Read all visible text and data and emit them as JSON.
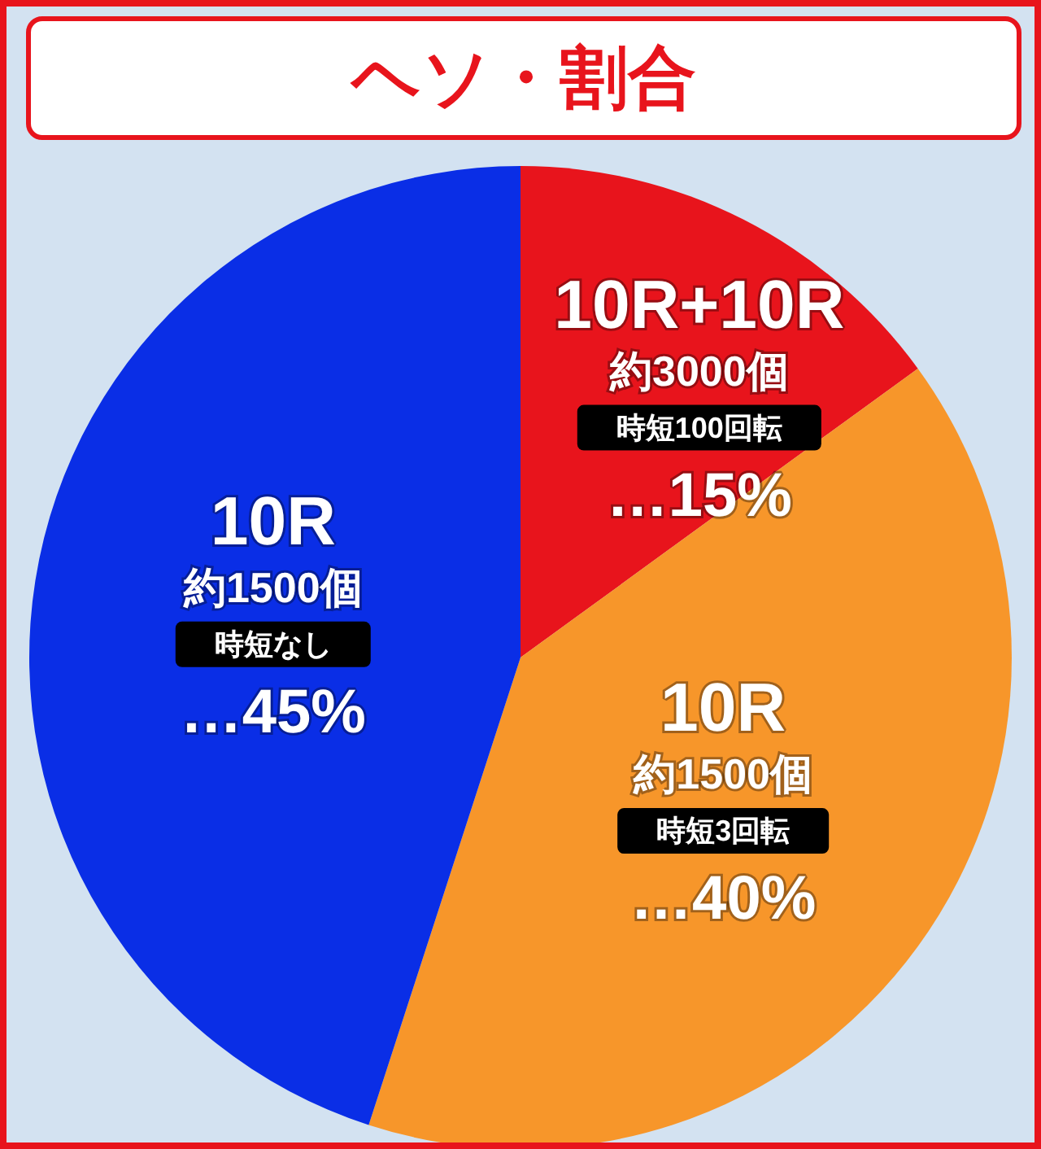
{
  "chart_data": {
    "type": "pie",
    "title": "ヘソ・割合",
    "categories": [
      "10R+10R\n約3000個",
      "10R\n約1500個",
      "10R\n約1500個"
    ],
    "annotations": [
      "時短100回転",
      "時短3回転",
      "時短なし"
    ],
    "values": [
      15,
      40,
      45
    ],
    "colors": [
      "#e8141c",
      "#f7962a",
      "#0a2ee6"
    ],
    "value_labels": [
      "…15%",
      "…40%",
      "…45%"
    ],
    "legend": false
  }
}
